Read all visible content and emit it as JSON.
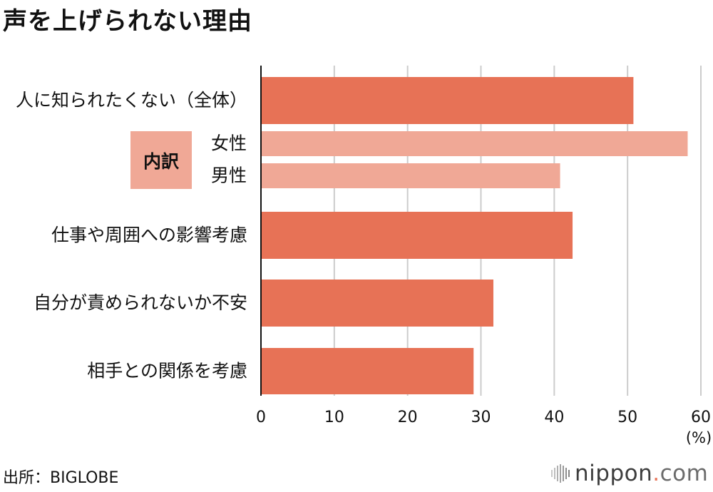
{
  "title": "声を上げられない理由",
  "breakdown_label": "内訳",
  "source": "出所：BIGLOBE",
  "logo": {
    "name": "nippon",
    "dot": ".",
    "suffix": "com",
    "icon": "sound-wave-icon"
  },
  "colors": {
    "main": "#e77256",
    "sub": "#f0a896",
    "grid": "#cccccc",
    "axis": "#111111"
  },
  "chart_data": {
    "type": "bar",
    "orientation": "horizontal",
    "categories": [
      "人に知られたくない（全体）",
      "女性",
      "男性",
      "仕事や周囲への影響考慮",
      "自分が責められないか不安",
      "相手との関係を考慮"
    ],
    "values": [
      50.8,
      58.2,
      40.8,
      42.5,
      31.7,
      29.0
    ],
    "subgroup": [
      false,
      true,
      true,
      false,
      false,
      false
    ],
    "xlim": [
      0,
      60
    ],
    "xticks": [
      "0",
      "10",
      "20",
      "30",
      "40",
      "50",
      "60"
    ],
    "xunit": "(%)",
    "grid": true
  }
}
